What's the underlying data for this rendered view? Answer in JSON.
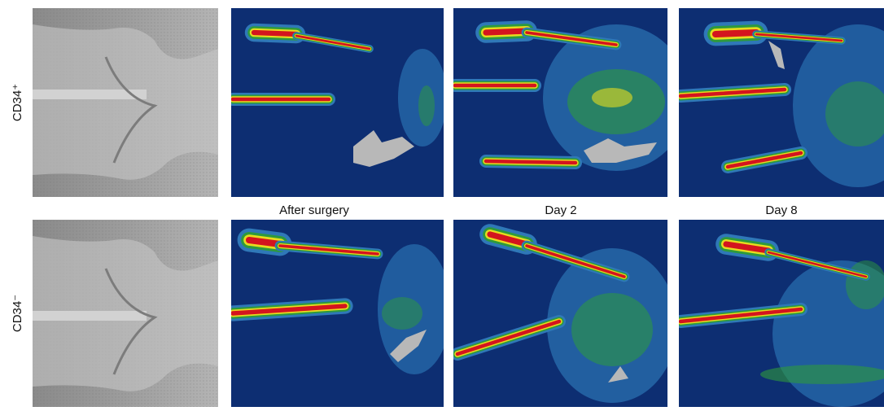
{
  "row_labels": [
    "CD34⁺",
    "CD34⁻"
  ],
  "column_labels": [
    "After surgery",
    "Day 2",
    "Day 8"
  ]
}
